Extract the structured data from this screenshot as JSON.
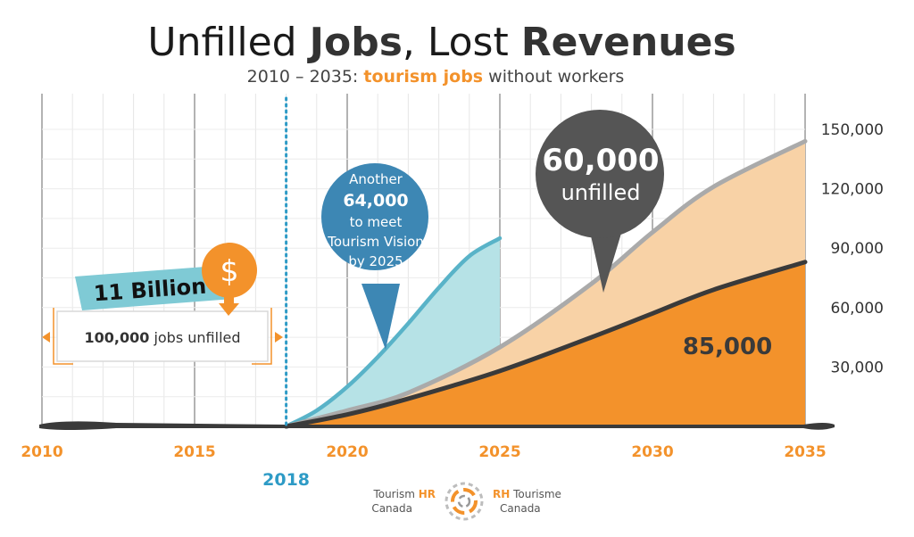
{
  "header": {
    "title_part1": "Unfilled ",
    "title_part2": "Jobs",
    "title_part3": ", Lost ",
    "title_part4": "Revenues",
    "subtitle_part1": "2010 – 2035: ",
    "subtitle_part2": "tourism jobs",
    "subtitle_part3": " without workers"
  },
  "chart_data": {
    "type": "area",
    "x_ticks": [
      "2010",
      "2015",
      "2020",
      "2025",
      "2030",
      "2035"
    ],
    "y_ticks": [
      "30,000",
      "60,000",
      "90,000",
      "120,000",
      "150,000"
    ],
    "xlim": [
      2010,
      2035
    ],
    "ylim": [
      0,
      150000
    ],
    "grid": true,
    "marker": {
      "x": 2018,
      "label": "2018"
    },
    "series": [
      {
        "color": "#59b3c8",
        "x": [
          2018,
          2019,
          2020,
          2021,
          2022,
          2023,
          2024,
          2025
        ],
        "values": [
          0,
          8000,
          20000,
          35000,
          52000,
          70000,
          86000,
          95000
        ]
      },
      {
        "color": "#aaaaaa",
        "x": [
          2018,
          2020,
          2022,
          2025,
          2028,
          2030,
          2032,
          2035
        ],
        "values": [
          0,
          8000,
          17000,
          40000,
          72000,
          98000,
          121000,
          144000
        ]
      },
      {
        "color": "#3a3a3a",
        "x": [
          2018,
          2020,
          2022,
          2025,
          2028,
          2030,
          2032,
          2035
        ],
        "values": [
          0,
          6000,
          14000,
          28000,
          45000,
          57000,
          69000,
          83000
        ]
      }
    ],
    "annotations": {
      "blue_bubble": [
        "Another",
        "64,000",
        "to meet",
        "Tourism Vision",
        "by 2025"
      ],
      "gray_bubble_value": "60,000",
      "gray_bubble_label": "unfilled",
      "area_value": "85,000",
      "revenue_label": "11 Billion",
      "dollar_sign": "$",
      "jobs_value": "100,000",
      "jobs_label": " jobs unfilled"
    },
    "colors": {
      "orange": "#f3922b",
      "light_orange": "#f8d2a6",
      "light_blue": "#b6e2e6",
      "blue_bubble": "#3d87b4",
      "dark_bubble": "#555555"
    }
  },
  "logo": {
    "left_line1_a": "Tourism ",
    "left_line1_b": "HR",
    "left_line2": "Canada",
    "right_line1_a": "RH",
    "right_line1_b": " Tourisme",
    "right_line2": "Canada",
    "icon": "ring-logo-icon"
  }
}
